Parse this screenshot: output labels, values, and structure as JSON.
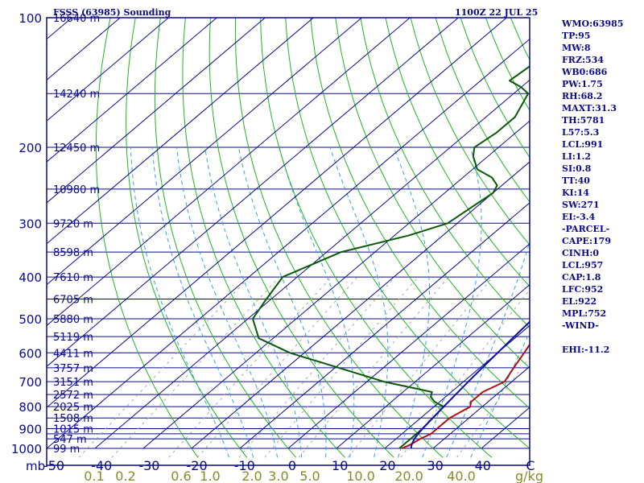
{
  "header": {
    "title_left": "FSSS (63985) Sounding",
    "title_right": "1100Z 22 JUL 25"
  },
  "indices": [
    "WMO:63985",
    "TP:95",
    "MW:8",
    "FRZ:534",
    "WB0:686",
    "PW:1.75",
    "RH:68.2",
    "MAXT:31.3",
    "TH:5781",
    "L57:5.3",
    "LCL:991",
    "LI:1.2",
    "SI:0.8",
    "TT:40",
    "KI:14",
    "SW:271",
    "EI:-3.4",
    "-PARCEL-",
    "CAPE:179",
    "CINH:0",
    "LCL:957",
    "CAP:1.8",
    "LFC:952",
    "EL:922",
    "MPL:752",
    "-WIND-",
    "",
    "EHI:-11.2"
  ],
  "colors": {
    "isobar": "#0a0a8c",
    "frame": "#0a0a8c",
    "isotherm": "#0a0a8c",
    "dry_adiabat": "#22b522",
    "moist_adiabat": "#3aa0e0",
    "mixing_ratio": "#a8a8a8",
    "temperature": "#b01010",
    "dewpoint": "#0a5a0a",
    "parcel": "#1010a0",
    "text": "#0a0a8c",
    "mixing_label": "#8a8a2a"
  },
  "chart_data": {
    "type": "line",
    "title": "FSSS (63985) Sounding",
    "subtitle": "1100Z 22 JUL 25",
    "xlabel": "",
    "ylabel": "mb",
    "x_unit_label": "mb",
    "mixing_unit_label": "g/kg",
    "xlim": [
      -50,
      50
    ],
    "ylim": [
      1000,
      100
    ],
    "y_scale": "log",
    "x_ticks": [
      "-50",
      "-40",
      "-30",
      "-20",
      "-10",
      "0",
      "10",
      "20",
      "30",
      "40",
      "C"
    ],
    "pressure_ticks": [
      "100",
      "200",
      "300",
      "400",
      "500",
      "600",
      "700",
      "800",
      "900",
      "1000"
    ],
    "pressure_tick_values": [
      100,
      200,
      300,
      400,
      500,
      600,
      700,
      800,
      900,
      1000
    ],
    "mixing_ratio_labels": [
      "0.1",
      "0.2",
      "0.6",
      "1.0",
      "2.0",
      "3.0",
      "5.0",
      "10.0",
      "20.0",
      "40.0"
    ],
    "height_levels": [
      {
        "p": 100,
        "label": "16640 m"
      },
      {
        "p": 150,
        "label": "14240 m"
      },
      {
        "p": 200,
        "label": "12450 m"
      },
      {
        "p": 250,
        "label": "10980 m"
      },
      {
        "p": 300,
        "label": "9720 m"
      },
      {
        "p": 350,
        "label": "8598 m"
      },
      {
        "p": 400,
        "label": "7610 m"
      },
      {
        "p": 450,
        "label": "6705 m"
      },
      {
        "p": 500,
        "label": "5880 m"
      },
      {
        "p": 550,
        "label": "5119 m"
      },
      {
        "p": 600,
        "label": "4411 m"
      },
      {
        "p": 650,
        "label": "3757 m"
      },
      {
        "p": 700,
        "label": "3151 m"
      },
      {
        "p": 750,
        "label": "2572 m"
      },
      {
        "p": 800,
        "label": "2025 m"
      },
      {
        "p": 850,
        "label": "1508 m"
      },
      {
        "p": 900,
        "label": "1015 m"
      },
      {
        "p": 950,
        "label": "547 m"
      },
      {
        "p": 1000,
        "label": "99 m"
      }
    ],
    "extra_isobars": [
      925
    ],
    "series": [
      {
        "key": "temperature",
        "points": [
          [
            1000,
            23.5
          ],
          [
            990,
            24.0
          ],
          [
            975,
            24.5
          ],
          [
            950,
            25.0
          ],
          [
            925,
            26.0
          ],
          [
            900,
            26.0
          ],
          [
            850,
            26.0
          ],
          [
            800,
            27.5
          ],
          [
            780,
            26.5
          ],
          [
            760,
            26.5
          ],
          [
            740,
            26.5
          ],
          [
            700,
            28.5
          ],
          [
            650,
            27.0
          ],
          [
            600,
            25.5
          ],
          [
            570,
            24.5
          ],
          [
            555,
            27.0
          ],
          [
            520,
            28.0
          ],
          [
            500,
            28.0
          ],
          [
            480,
            29.0
          ],
          [
            455,
            30.5
          ],
          [
            435,
            28.5
          ],
          [
            420,
            25.0
          ],
          [
            400,
            22.0
          ],
          [
            350,
            18.0
          ],
          [
            320,
            13.0
          ],
          [
            300,
            10.0
          ],
          [
            270,
            6.0
          ],
          [
            250,
            2.5
          ],
          [
            235,
            2.0
          ],
          [
            210,
            -1.5
          ],
          [
            190,
            -4.5
          ],
          [
            170,
            -8.0
          ],
          [
            160,
            -9.5
          ],
          [
            155,
            -10.5
          ],
          [
            150,
            -9.5
          ],
          [
            148,
            -6.0
          ],
          [
            140,
            -2.0
          ],
          [
            125,
            -2.5
          ],
          [
            110,
            -1.5
          ],
          [
            100,
            -0.5
          ]
        ]
      },
      {
        "key": "dewpoint",
        "points": [
          [
            1000,
            23.0
          ],
          [
            975,
            23.0
          ],
          [
            950,
            23.0
          ],
          [
            925,
            23.0
          ],
          [
            900,
            23.0
          ],
          [
            850,
            22.5
          ],
          [
            800,
            22.0
          ],
          [
            780,
            19.0
          ],
          [
            760,
            17.0
          ],
          [
            740,
            16.0
          ],
          [
            700,
            3.5
          ],
          [
            600,
            -23.0
          ],
          [
            555,
            -33.0
          ],
          [
            500,
            -39.0
          ],
          [
            450,
            -41.0
          ],
          [
            400,
            -43.0
          ],
          [
            350,
            -37.0
          ],
          [
            320,
            -27.0
          ],
          [
            300,
            -22.0
          ],
          [
            255,
            -20.0
          ],
          [
            245,
            -21.0
          ],
          [
            235,
            -24.0
          ],
          [
            225,
            -29.0
          ],
          [
            210,
            -33.0
          ],
          [
            200,
            -35.0
          ],
          [
            185,
            -34.0
          ],
          [
            170,
            -34.0
          ],
          [
            150,
            -37.0
          ],
          [
            145,
            -40.0
          ],
          [
            140,
            -44.0
          ],
          [
            125,
            -43.0
          ],
          [
            110,
            -48.0
          ],
          [
            100,
            -52.0
          ]
        ]
      },
      {
        "key": "parcel",
        "points": [
          [
            1000,
            25.5
          ],
          [
            990,
            25.0
          ],
          [
            975,
            24.5
          ],
          [
            950,
            23.8
          ],
          [
            925,
            23.3
          ],
          [
            900,
            23.0
          ],
          [
            850,
            22.5
          ],
          [
            800,
            22.0
          ],
          [
            750,
            21.5
          ],
          [
            700,
            21.0
          ],
          [
            650,
            20.5
          ],
          [
            600,
            20.0
          ],
          [
            550,
            19.5
          ],
          [
            500,
            19.0
          ],
          [
            450,
            17.5
          ],
          [
            400,
            15.5
          ],
          [
            350,
            12.5
          ],
          [
            300,
            8.5
          ],
          [
            250,
            3.0
          ],
          [
            200,
            -5.0
          ],
          [
            150,
            -17.0
          ],
          [
            120,
            -29.0
          ],
          [
            110,
            -35.0
          ],
          [
            100,
            -41.0
          ]
        ]
      }
    ]
  }
}
